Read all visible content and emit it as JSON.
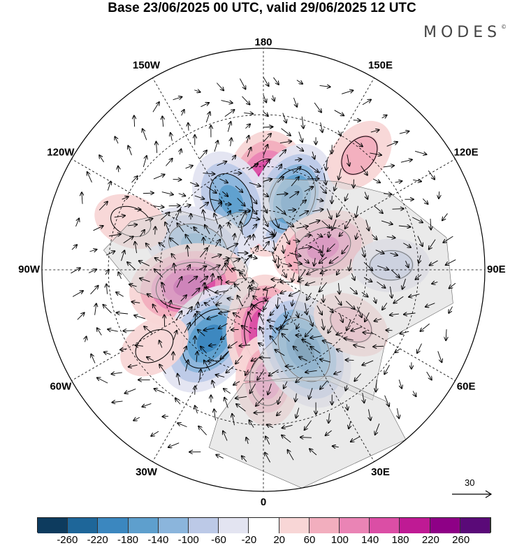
{
  "title": "Base 23/06/2025 00 UTC, valid 29/06/2025 12 UTC",
  "brand": "MODES",
  "brand_mark": "©",
  "longitude_labels": [
    {
      "text": "180",
      "lon": 180
    },
    {
      "text": "150E",
      "lon": 150
    },
    {
      "text": "120E",
      "lon": 120
    },
    {
      "text": "90E",
      "lon": 90
    },
    {
      "text": "60E",
      "lon": 60
    },
    {
      "text": "30E",
      "lon": 30
    },
    {
      "text": "0",
      "lon": 0
    },
    {
      "text": "30W",
      "lon": -30
    },
    {
      "text": "60W",
      "lon": -60
    },
    {
      "text": "90W",
      "lon": -90
    },
    {
      "text": "120W",
      "lon": -120
    },
    {
      "text": "150W",
      "lon": -150
    }
  ],
  "vector_reference": {
    "value": "30"
  },
  "colorbar": {
    "ticks": [
      "-260",
      "-220",
      "-180",
      "-140",
      "-100",
      "-60",
      "-20",
      "20",
      "60",
      "100",
      "140",
      "180",
      "220",
      "260"
    ],
    "colors": [
      "#0d3b5e",
      "#1e6699",
      "#3b87bf",
      "#5e9fcd",
      "#8bb5dc",
      "#bcc9e7",
      "#e3e4f1",
      "#ffffff",
      "#f8d6d6",
      "#f2aebe",
      "#ea84b5",
      "#db4ea5",
      "#bf1a94",
      "#8e0086",
      "#5a0a78"
    ]
  },
  "anomaly_centers": [
    {
      "name": "anomaly-positive-north",
      "lon": 177,
      "lat": 52,
      "value": 230
    },
    {
      "name": "anomaly-negative-north-east",
      "lon": 158,
      "lat": 52,
      "value": -190
    },
    {
      "name": "anomaly-negative-north-west",
      "lon": -155,
      "lat": 52,
      "value": -150
    },
    {
      "name": "anomaly-positive-east",
      "lon": 110,
      "lat": 58,
      "value": 150
    },
    {
      "name": "anomaly-negative-west",
      "lon": -110,
      "lat": 55,
      "value": -170
    },
    {
      "name": "anomaly-positive-west",
      "lon": -78,
      "lat": 52,
      "value": 210
    },
    {
      "name": "anomaly-negative-south-west",
      "lon": -38,
      "lat": 47,
      "value": -210
    },
    {
      "name": "anomaly-positive-south",
      "lon": 3,
      "lat": 58,
      "value": 200
    },
    {
      "name": "anomaly-positive-south-lower",
      "lon": 2,
      "lat": 37,
      "value": 110
    },
    {
      "name": "anomaly-negative-south-east",
      "lon": 27,
      "lat": 46,
      "value": -220
    },
    {
      "name": "anomaly-positive-south-east",
      "lon": 58,
      "lat": 40,
      "value": 70
    },
    {
      "name": "anomaly-negative-east-lower",
      "lon": 92,
      "lat": 30,
      "value": -60
    },
    {
      "name": "anomaly-positive-north-east-outer",
      "lon": 140,
      "lat": 22,
      "value": 60
    },
    {
      "name": "anomaly-positive-west-outer",
      "lon": -110,
      "lat": 25,
      "value": 50
    },
    {
      "name": "anomaly-positive-south-west-outer",
      "lon": -55,
      "lat": 28,
      "value": 50
    }
  ]
}
